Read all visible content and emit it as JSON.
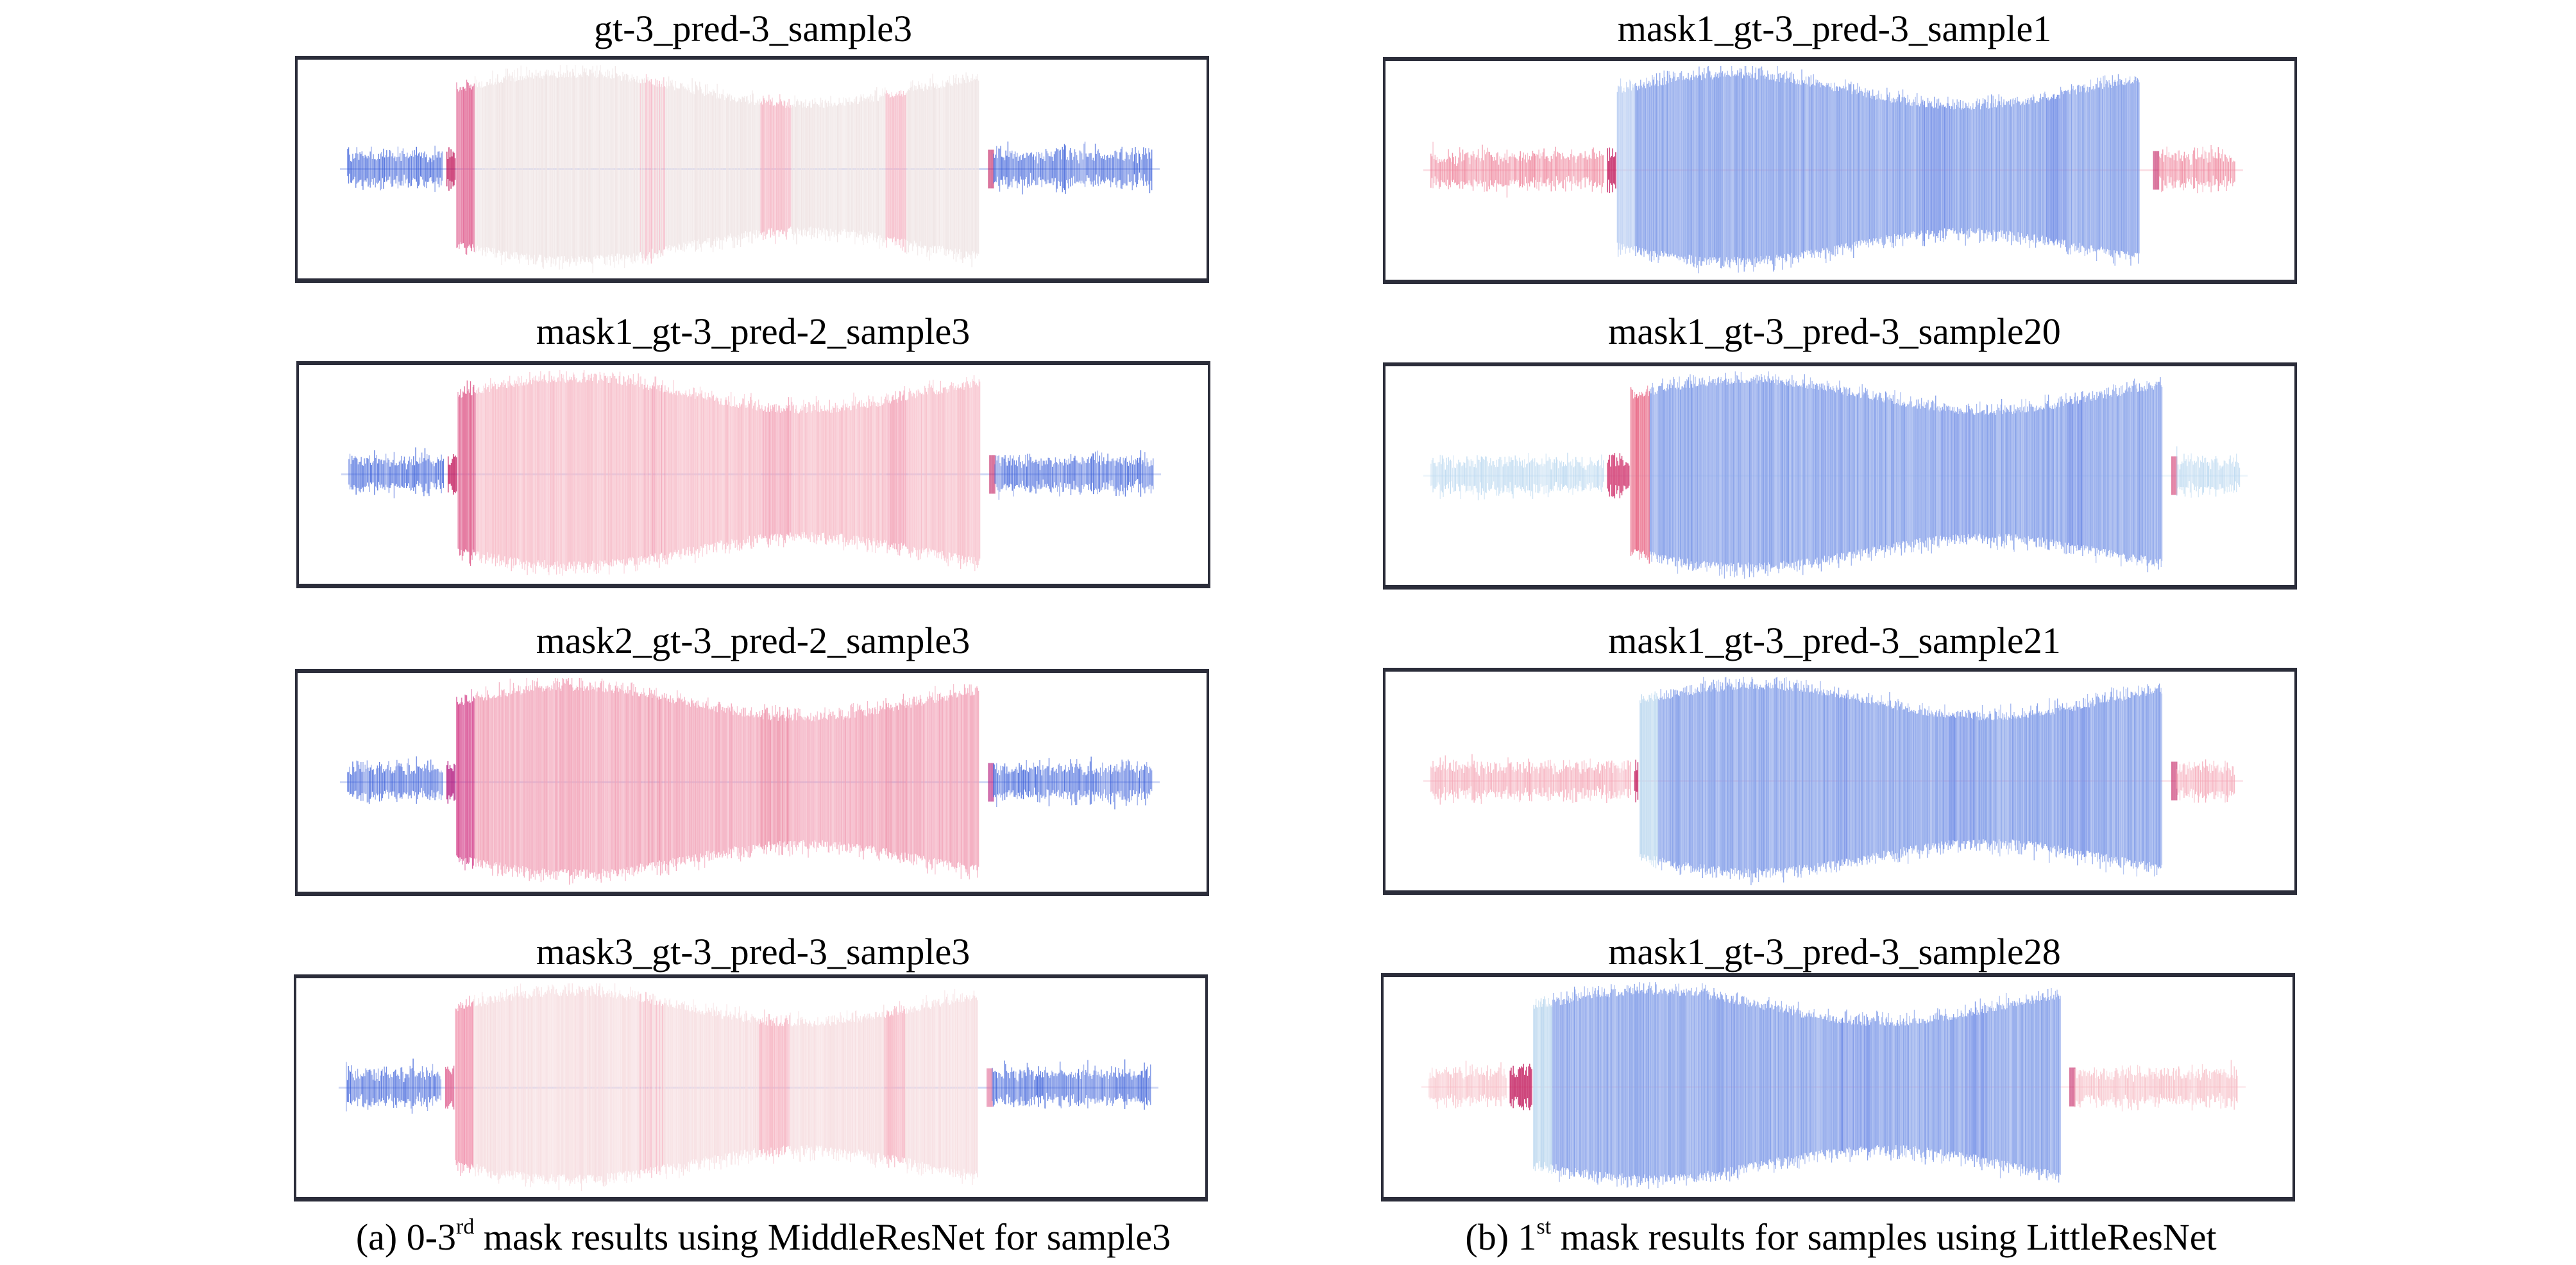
{
  "figure": {
    "left_column": {
      "caption_prefix": "(a) 0-3",
      "caption_sup": "rd",
      "caption_suffix": " mask results using MiddleResNet for sample3",
      "panels": [
        {
          "title": "gt-3_pred-3_sample3",
          "segments": [
            {
              "part": "pre-noise",
              "color": "#3a5fd9"
            },
            {
              "part": "onset",
              "color": "#c2185b"
            },
            {
              "part": "main-start",
              "color": "#e06090"
            },
            {
              "part": "main",
              "color": "#efe4e4"
            },
            {
              "part": "main-band",
              "color": "#f5b8c6"
            },
            {
              "part": "post-noise",
              "color": "#3a5fd9"
            }
          ]
        },
        {
          "title": "mask1_gt-3_pred-2_sample3",
          "segments": [
            {
              "part": "pre-noise",
              "color": "#3a5fd9"
            },
            {
              "part": "onset",
              "color": "#c2185b"
            },
            {
              "part": "main-start",
              "color": "#e0608e"
            },
            {
              "part": "main",
              "color": "#f7bcc8"
            },
            {
              "part": "main-band",
              "color": "#f3a4b8"
            },
            {
              "part": "post-noise",
              "color": "#3a5fd9"
            }
          ]
        },
        {
          "title": "mask2_gt-3_pred-2_sample3",
          "segments": [
            {
              "part": "pre-noise",
              "color": "#3a5fd9"
            },
            {
              "part": "onset",
              "color": "#b0127a"
            },
            {
              "part": "main-start",
              "color": "#d43f8a"
            },
            {
              "part": "main",
              "color": "#f2a3b8"
            },
            {
              "part": "main-band",
              "color": "#ee8fa8"
            },
            {
              "part": "post-noise",
              "color": "#3a5fd9"
            }
          ]
        },
        {
          "title": "mask3_gt-3_pred-3_sample3",
          "segments": [
            {
              "part": "pre-noise",
              "color": "#3a5fd9"
            },
            {
              "part": "onset",
              "color": "#e06090"
            },
            {
              "part": "main-start",
              "color": "#f08aa6"
            },
            {
              "part": "main",
              "color": "#f6dcdf"
            },
            {
              "part": "main-band",
              "color": "#f6b4c2"
            },
            {
              "part": "post-noise",
              "color": "#3a5fd9"
            }
          ]
        }
      ]
    },
    "right_column": {
      "caption_prefix": "(b) 1",
      "caption_sup": "st",
      "caption_suffix": " mask results for samples using LittleResNet",
      "panels": [
        {
          "title": "mask1_gt-3_pred-3_sample1",
          "segments": [
            {
              "part": "pre-noise",
              "color": "#ee7f97"
            },
            {
              "part": "onset",
              "color": "#c2185b"
            },
            {
              "part": "main-start",
              "color": "#b9cdf2"
            },
            {
              "part": "main",
              "color": "#7f9be8"
            },
            {
              "part": "main-band",
              "color": "#6f8ce6"
            },
            {
              "part": "post-noise",
              "color": "#ee7f97"
            }
          ]
        },
        {
          "title": "mask1_gt-3_pred-3_sample20",
          "segments": [
            {
              "part": "pre-noise",
              "color": "#b7d6ef"
            },
            {
              "part": "onset",
              "color": "#d0306a"
            },
            {
              "part": "main-start",
              "color": "#e8607f"
            },
            {
              "part": "main",
              "color": "#7f9be8"
            },
            {
              "part": "main-band",
              "color": "#6f8ce6"
            },
            {
              "part": "post-noise",
              "color": "#b7d6ef"
            }
          ]
        },
        {
          "title": "mask1_gt-3_pred-3_sample21",
          "segments": [
            {
              "part": "pre-noise",
              "color": "#f4a3b3"
            },
            {
              "part": "onset",
              "color": "#c2185b"
            },
            {
              "part": "main-start",
              "color": "#b9d6ee"
            },
            {
              "part": "main",
              "color": "#7f9be8"
            },
            {
              "part": "main-band",
              "color": "#6f8ce6"
            },
            {
              "part": "post-noise",
              "color": "#f4a3b3"
            }
          ]
        },
        {
          "title": "mask1_gt-3_pred-3_sample28",
          "segments": [
            {
              "part": "pre-noise",
              "color": "#f6b9c2"
            },
            {
              "part": "onset",
              "color": "#c2185b"
            },
            {
              "part": "main-start",
              "color": "#b9d6ee"
            },
            {
              "part": "main",
              "color": "#7f9be8"
            },
            {
              "part": "main-band",
              "color": "#6f8ce6"
            },
            {
              "part": "post-noise",
              "color": "#f6b9c2"
            }
          ]
        }
      ]
    }
  }
}
